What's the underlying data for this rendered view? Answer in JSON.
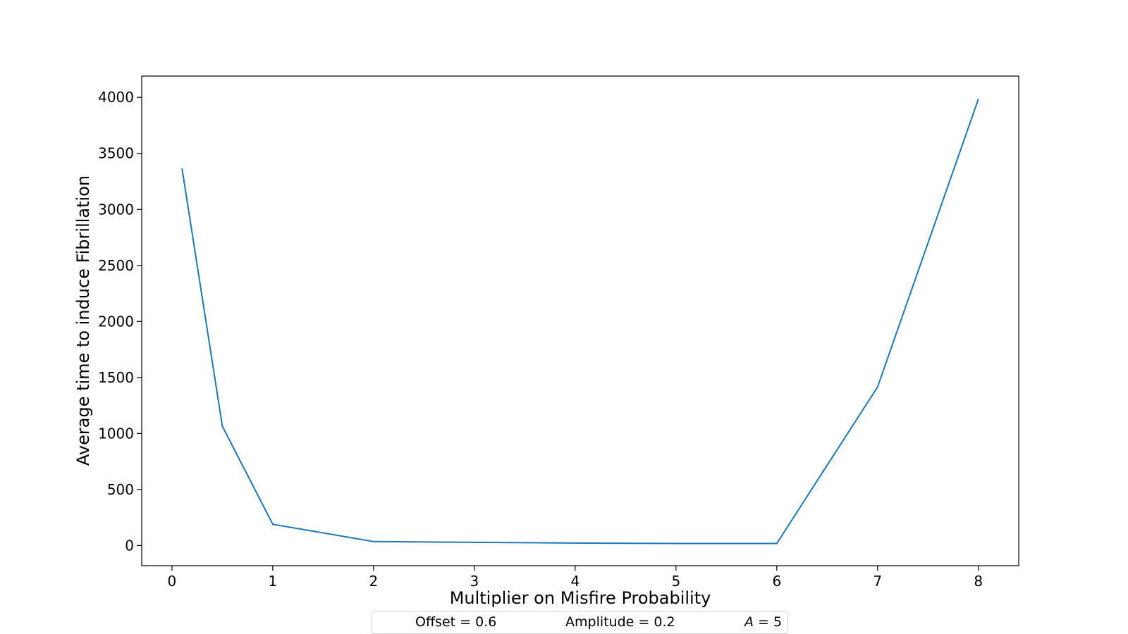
{
  "chart_data": {
    "type": "line",
    "xlabel": "Multiplier on Misfire Probability",
    "ylabel": "Average time to induce Fibrillation",
    "xlim": [
      -0.3,
      8.4
    ],
    "ylim": [
      -180,
      4190
    ],
    "xticks": [
      0,
      1,
      2,
      3,
      4,
      5,
      6,
      7,
      8
    ],
    "yticks": [
      0,
      500,
      1000,
      1500,
      2000,
      2500,
      3000,
      3500,
      4000
    ],
    "grid": false,
    "series": [
      {
        "color": "#1f77b4",
        "x": [
          0.1,
          0.5,
          1,
          2,
          3,
          4,
          5,
          6,
          7,
          8
        ],
        "y": [
          3365,
          1065,
          190,
          35,
          28,
          22,
          18,
          18,
          1415,
          3985
        ]
      }
    ],
    "annotations": {
      "offset_text": "Offset = 0.6",
      "amplitude_text": "Amplitude = 0.2",
      "a_symbol": "A",
      "a_text": " = 5"
    }
  }
}
